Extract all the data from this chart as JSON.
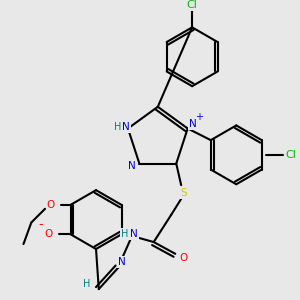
{
  "bg_color": "#e8e8e8",
  "atom_colors": {
    "N": "#0000cc",
    "O": "#ff0000",
    "S": "#cccc00",
    "Cl": "#00bb00",
    "H": "#008080",
    "C": "#000000"
  },
  "bond_color": "#000000",
  "bond_width": 1.5,
  "font_size": 7.5
}
